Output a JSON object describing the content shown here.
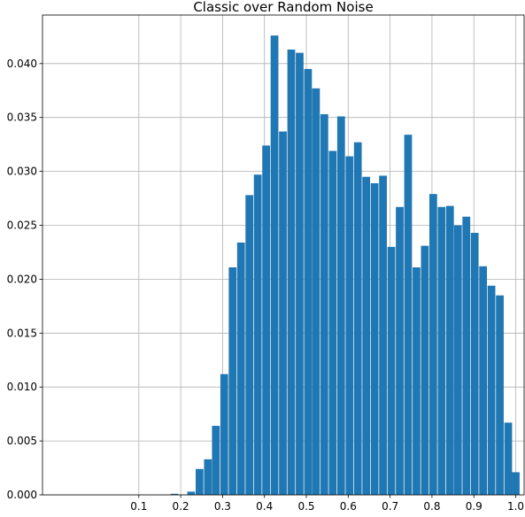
{
  "chart_data": {
    "type": "bar",
    "title": "Classic over Random Noise",
    "xlabel": "",
    "ylabel": "",
    "xlim": [
      -0.13,
      1.02
    ],
    "ylim": [
      0,
      0.0445
    ],
    "grid": true,
    "bar_color": "#1f77b4",
    "bar_width": 0.0185,
    "x_ticks": [
      {
        "value": 0.1,
        "label": "0.1"
      },
      {
        "value": 0.2,
        "label": "0.2"
      },
      {
        "value": 0.3,
        "label": "0.3"
      },
      {
        "value": 0.4,
        "label": "0.4"
      },
      {
        "value": 0.5,
        "label": "0.5"
      },
      {
        "value": 0.6,
        "label": "0.6"
      },
      {
        "value": 0.7,
        "label": "0.7"
      },
      {
        "value": 0.8,
        "label": "0.8"
      },
      {
        "value": 0.9,
        "label": "0.9"
      },
      {
        "value": 1.0,
        "label": "1.0"
      }
    ],
    "y_ticks": [
      {
        "value": 0,
        "label": "0.000"
      },
      {
        "value": 0.005,
        "label": "0.005"
      },
      {
        "value": 0.01,
        "label": "0.010"
      },
      {
        "value": 0.015,
        "label": "0.015"
      },
      {
        "value": 0.02,
        "label": "0.020"
      },
      {
        "value": 0.025,
        "label": "0.025"
      },
      {
        "value": 0.03,
        "label": "0.030"
      },
      {
        "value": 0.035,
        "label": "0.035"
      },
      {
        "value": 0.04,
        "label": "0.040"
      }
    ],
    "x": [
      0.185,
      0.225,
      0.245,
      0.265,
      0.284,
      0.304,
      0.324,
      0.344,
      0.364,
      0.384,
      0.404,
      0.424,
      0.444,
      0.464,
      0.484,
      0.504,
      0.523,
      0.543,
      0.563,
      0.583,
      0.603,
      0.623,
      0.643,
      0.663,
      0.683,
      0.703,
      0.723,
      0.743,
      0.763,
      0.783,
      0.803,
      0.823,
      0.843,
      0.862,
      0.882,
      0.902,
      0.922,
      0.942,
      0.962,
      0.982,
      1.0
    ],
    "values": [
      0.0001,
      0.0003,
      0.0024,
      0.0033,
      0.0064,
      0.0112,
      0.0211,
      0.0234,
      0.0278,
      0.0297,
      0.0324,
      0.0426,
      0.0337,
      0.0413,
      0.041,
      0.0395,
      0.0377,
      0.0353,
      0.0319,
      0.0351,
      0.0314,
      0.0327,
      0.0295,
      0.0289,
      0.0296,
      0.023,
      0.0267,
      0.0334,
      0.0211,
      0.0231,
      0.0279,
      0.0267,
      0.0268,
      0.025,
      0.0258,
      0.0243,
      0.0212,
      0.0194,
      0.0185,
      0.0067,
      0.0021
    ]
  }
}
